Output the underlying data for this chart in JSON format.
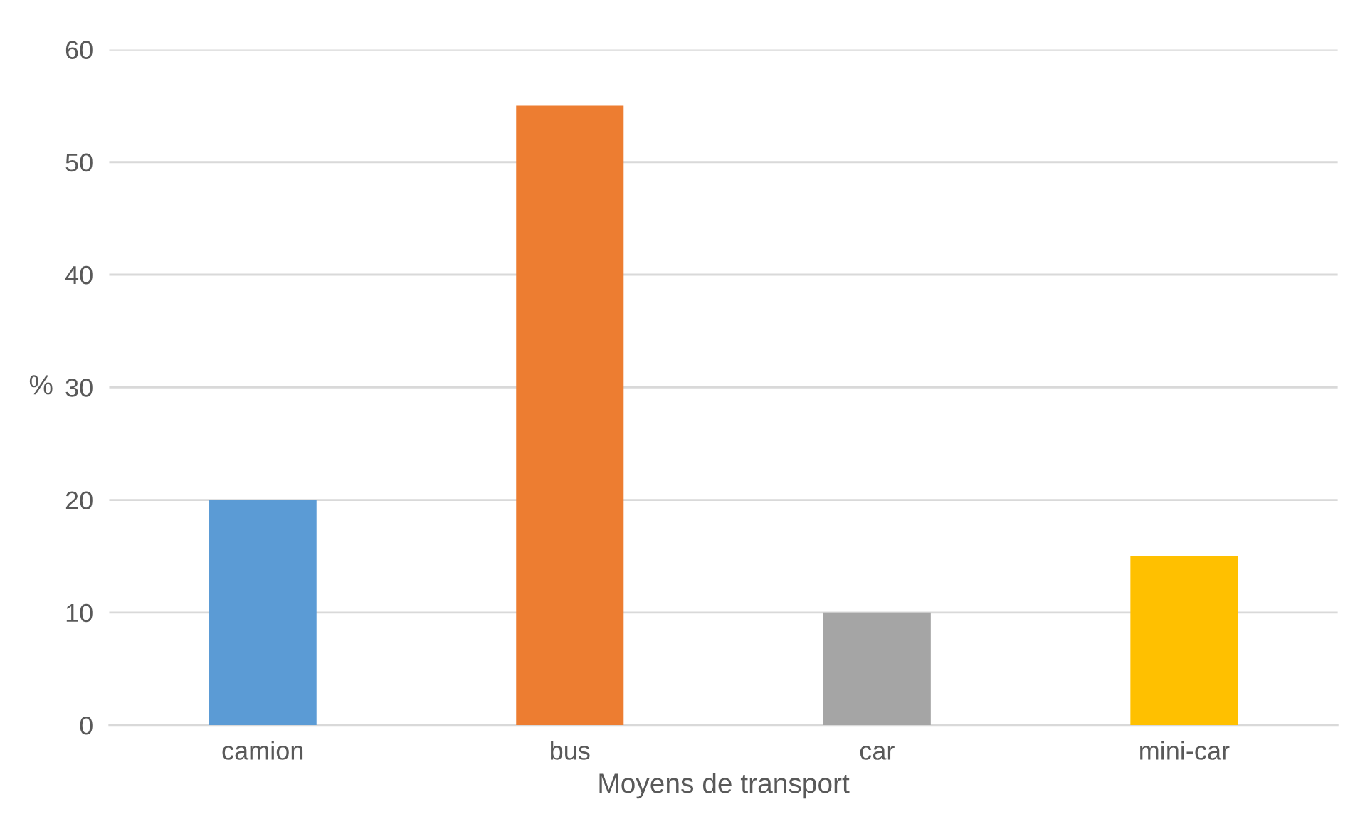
{
  "chart_data": {
    "type": "bar",
    "xlabel": "Moyens de transport",
    "ylabel": "%",
    "categories": [
      "camion",
      "bus",
      "car",
      "mini-car"
    ],
    "values": [
      20,
      55,
      10,
      15
    ],
    "colors": [
      "#5b9bd5",
      "#ed7d31",
      "#a5a5a5",
      "#ffc000"
    ],
    "ylim": [
      0,
      60
    ],
    "yticks": [
      0,
      10,
      20,
      30,
      40,
      50,
      60
    ],
    "grid": "y",
    "legend": false
  }
}
